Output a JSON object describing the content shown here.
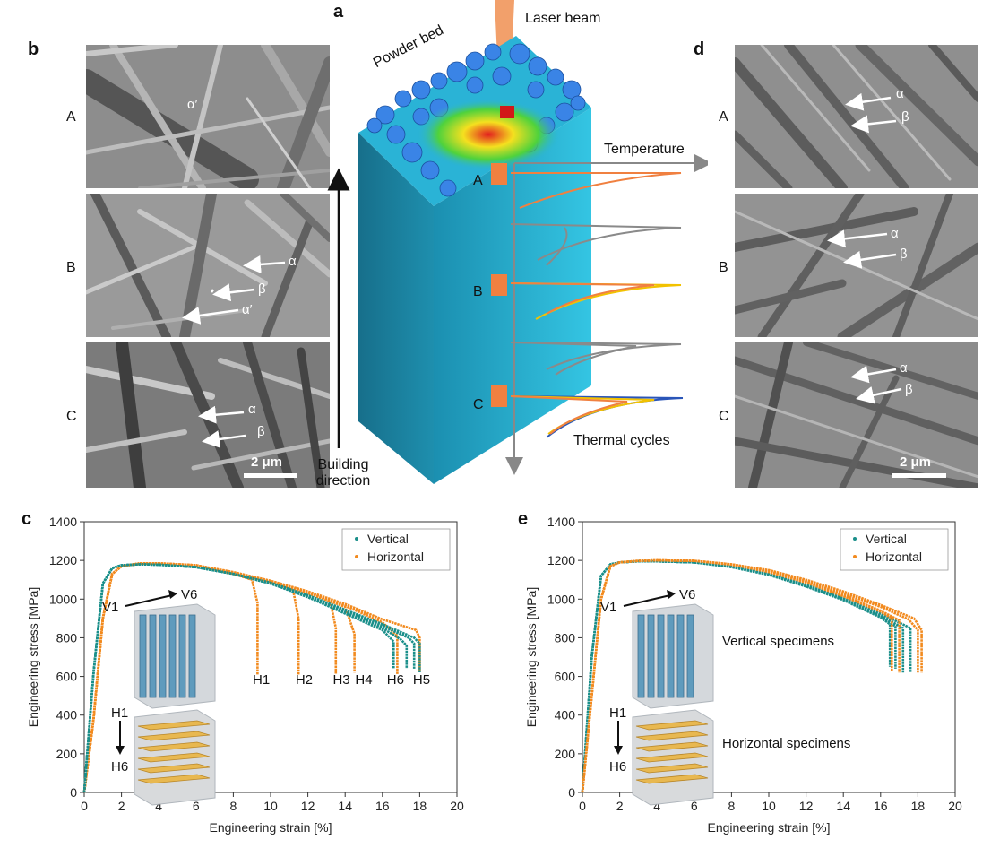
{
  "figure": {
    "panel_a": {
      "letter": "a",
      "laser_beam": "Laser beam",
      "powder_bed": "Powder bed",
      "temperature": "Temperature",
      "thermal_cycles": "Thermal cycles",
      "building_direction_1": "Building",
      "building_direction_2": "direction",
      "points": [
        "A",
        "B",
        "C"
      ]
    },
    "panel_b": {
      "letter": "b",
      "rows": [
        {
          "label": "A",
          "annotations": [
            "α′"
          ]
        },
        {
          "label": "B",
          "annotations": [
            "α",
            "β",
            "α′"
          ]
        },
        {
          "label": "C",
          "annotations": [
            "α",
            "β"
          ]
        }
      ],
      "scale_bar": "2 μm"
    },
    "panel_d": {
      "letter": "d",
      "rows": [
        {
          "label": "A",
          "annotations": [
            "α",
            "β"
          ]
        },
        {
          "label": "B",
          "annotations": [
            "α",
            "β"
          ]
        },
        {
          "label": "C",
          "annotations": [
            "α",
            "β"
          ]
        }
      ],
      "scale_bar": "2 μm"
    },
    "panel_c": {
      "letter": "c",
      "inset_top": {
        "from": "V1",
        "to": "V6"
      },
      "inset_bottom": {
        "from": "H1",
        "to": "H6"
      },
      "fracture_labels": [
        "H1",
        "H2",
        "H3",
        "H4",
        "H6",
        "H5"
      ]
    },
    "panel_e": {
      "letter": "e",
      "inset_top": {
        "from": "V1",
        "to": "V6",
        "caption": "Vertical specimens"
      },
      "inset_bottom": {
        "from": "H1",
        "to": "H6",
        "caption": "Horizontal specimens"
      }
    }
  },
  "colors": {
    "vertical": "#1a8f8a",
    "horizontal": "#f28a1e",
    "gray_cycle": "#8a8a8a",
    "yellow_cycle": "#f2c200",
    "blue_cycle": "#2a55b8",
    "block_front": "#2ab3d6",
    "block_side": "#1c89a8"
  },
  "chart_data": [
    {
      "type": "line",
      "panel": "c",
      "xlabel": "Engineering strain [%]",
      "ylabel": "Engineering stress [MPa]",
      "xlim": [
        0,
        20
      ],
      "ylim": [
        0,
        1400
      ],
      "xticks": [
        0,
        2,
        4,
        6,
        8,
        10,
        12,
        14,
        16,
        18,
        20
      ],
      "yticks": [
        0,
        200,
        400,
        600,
        800,
        1000,
        1200,
        1400
      ],
      "legend": [
        "Vertical",
        "Horizontal"
      ],
      "legend_position": "top-right",
      "series": [
        {
          "name": "Vertical",
          "group": "vertical",
          "x": [
            0,
            0.5,
            1.0,
            1.5,
            2,
            3,
            4,
            6,
            8,
            10,
            12,
            14,
            16,
            17.0,
            17.3,
            17.3
          ],
          "y": [
            0,
            620,
            1080,
            1160,
            1175,
            1180,
            1178,
            1165,
            1130,
            1080,
            1010,
            930,
            850,
            790,
            760,
            640
          ]
        },
        {
          "name": "",
          "group": "vertical",
          "x": [
            0,
            0.5,
            1.0,
            1.5,
            2,
            3,
            4,
            6,
            8,
            10,
            12,
            14,
            16,
            17.4,
            17.7,
            17.7
          ],
          "y": [
            0,
            620,
            1080,
            1160,
            1175,
            1180,
            1178,
            1165,
            1130,
            1080,
            1015,
            940,
            860,
            800,
            770,
            640
          ]
        },
        {
          "name": "",
          "group": "vertical",
          "x": [
            0,
            0.5,
            1.0,
            1.5,
            2,
            3,
            4,
            6,
            8,
            10,
            12,
            14,
            16,
            17.7,
            18.0,
            18.0
          ],
          "y": [
            0,
            620,
            1080,
            1160,
            1175,
            1180,
            1178,
            1165,
            1130,
            1085,
            1020,
            945,
            870,
            800,
            770,
            620
          ]
        },
        {
          "name": "",
          "group": "vertical",
          "x": [
            0,
            0.5,
            1.0,
            1.5,
            2,
            3,
            4,
            6,
            8,
            10,
            12,
            14,
            16,
            16.6,
            16.6
          ],
          "y": [
            0,
            620,
            1080,
            1160,
            1175,
            1180,
            1178,
            1165,
            1130,
            1080,
            1010,
            925,
            840,
            780,
            640
          ]
        },
        {
          "name": "Horizontal",
          "group": "horizontal",
          "x": [
            0,
            0.5,
            1.0,
            1.5,
            2,
            3,
            4,
            6,
            8,
            9.0,
            9.3,
            9.3
          ],
          "y": [
            0,
            380,
            900,
            1130,
            1170,
            1185,
            1185,
            1175,
            1130,
            1100,
            980,
            610
          ]
        },
        {
          "name": "",
          "group": "horizontal",
          "x": [
            0,
            0.5,
            1.0,
            1.5,
            2,
            3,
            4,
            6,
            8,
            10,
            11.2,
            11.5,
            11.5
          ],
          "y": [
            0,
            380,
            900,
            1130,
            1170,
            1185,
            1185,
            1175,
            1135,
            1090,
            1050,
            900,
            610
          ]
        },
        {
          "name": "",
          "group": "horizontal",
          "x": [
            0,
            0.5,
            1.0,
            1.5,
            2,
            3,
            4,
            6,
            8,
            10,
            12,
            13.2,
            13.5,
            13.5
          ],
          "y": [
            0,
            380,
            900,
            1130,
            1170,
            1185,
            1185,
            1175,
            1135,
            1090,
            1030,
            990,
            850,
            610
          ]
        },
        {
          "name": "",
          "group": "horizontal",
          "x": [
            0,
            0.5,
            1.0,
            1.5,
            2,
            3,
            4,
            6,
            8,
            10,
            12,
            14,
            14.5,
            14.5
          ],
          "y": [
            0,
            380,
            900,
            1130,
            1170,
            1185,
            1185,
            1175,
            1135,
            1090,
            1030,
            960,
            820,
            620
          ]
        },
        {
          "name": "",
          "group": "horizontal",
          "x": [
            0,
            0.5,
            1.0,
            1.5,
            2,
            3,
            4,
            6,
            8,
            10,
            12,
            14,
            16,
            16.8,
            16.8
          ],
          "y": [
            0,
            380,
            900,
            1130,
            1170,
            1185,
            1185,
            1175,
            1135,
            1090,
            1035,
            965,
            880,
            810,
            610
          ]
        },
        {
          "name": "",
          "group": "horizontal",
          "x": [
            0,
            0.5,
            1.0,
            1.5,
            2,
            3,
            4,
            6,
            8,
            10,
            12,
            14,
            16,
            17.8,
            18.0,
            18.0
          ],
          "y": [
            0,
            380,
            900,
            1130,
            1170,
            1185,
            1185,
            1175,
            1140,
            1095,
            1040,
            975,
            895,
            840,
            800,
            630
          ]
        }
      ]
    },
    {
      "type": "line",
      "panel": "e",
      "xlabel": "Engineering strain [%]",
      "ylabel": "Engineering stress [MPa]",
      "xlim": [
        0,
        20
      ],
      "ylim": [
        0,
        1400
      ],
      "xticks": [
        0,
        2,
        4,
        6,
        8,
        10,
        12,
        14,
        16,
        18,
        20
      ],
      "yticks": [
        0,
        200,
        400,
        600,
        800,
        1000,
        1200,
        1400
      ],
      "legend": [
        "Vertical",
        "Horizontal"
      ],
      "legend_position": "top-right",
      "series": [
        {
          "name": "Vertical",
          "group": "vertical",
          "x": [
            0,
            0.5,
            1.0,
            1.5,
            2,
            3,
            4,
            6,
            8,
            10,
            12,
            14,
            16,
            16.8,
            16.8
          ],
          "y": [
            0,
            700,
            1120,
            1180,
            1190,
            1195,
            1195,
            1190,
            1170,
            1130,
            1070,
            1000,
            910,
            860,
            640
          ]
        },
        {
          "name": "",
          "group": "vertical",
          "x": [
            0,
            0.5,
            1.0,
            1.5,
            2,
            3,
            4,
            6,
            8,
            10,
            12,
            14,
            16,
            17.2,
            17.2
          ],
          "y": [
            0,
            700,
            1120,
            1180,
            1190,
            1195,
            1195,
            1190,
            1170,
            1130,
            1070,
            1000,
            915,
            850,
            620
          ]
        },
        {
          "name": "",
          "group": "vertical",
          "x": [
            0,
            0.5,
            1.0,
            1.5,
            2,
            3,
            4,
            6,
            8,
            10,
            12,
            14,
            16,
            17.6,
            17.6
          ],
          "y": [
            0,
            700,
            1120,
            1180,
            1190,
            1195,
            1195,
            1190,
            1170,
            1130,
            1075,
            1005,
            925,
            850,
            620
          ]
        },
        {
          "name": "",
          "group": "vertical",
          "x": [
            0,
            0.5,
            1.0,
            1.5,
            2,
            3,
            4,
            6,
            8,
            10,
            12,
            14,
            16,
            16.5,
            16.5
          ],
          "y": [
            0,
            700,
            1120,
            1180,
            1190,
            1195,
            1195,
            1190,
            1165,
            1125,
            1065,
            995,
            905,
            870,
            650
          ]
        },
        {
          "name": "Horizontal",
          "group": "horizontal",
          "x": [
            0,
            0.5,
            1.0,
            1.5,
            2,
            3,
            4,
            6,
            8,
            10,
            12,
            14,
            16,
            17.8,
            18.2,
            18.2
          ],
          "y": [
            0,
            500,
            1000,
            1170,
            1190,
            1198,
            1200,
            1198,
            1180,
            1150,
            1100,
            1040,
            970,
            900,
            840,
            620
          ]
        },
        {
          "name": "",
          "group": "horizontal",
          "x": [
            0,
            0.5,
            1.0,
            1.5,
            2,
            3,
            4,
            6,
            8,
            10,
            12,
            14,
            16,
            17.5,
            18.0,
            18.0
          ],
          "y": [
            0,
            500,
            1000,
            1170,
            1190,
            1198,
            1200,
            1198,
            1180,
            1148,
            1095,
            1030,
            960,
            895,
            840,
            620
          ]
        },
        {
          "name": "",
          "group": "horizontal",
          "x": [
            0,
            0.5,
            1.0,
            1.5,
            2,
            3,
            4,
            6,
            8,
            10,
            12,
            14,
            16,
            17.0,
            17.0
          ],
          "y": [
            0,
            500,
            1000,
            1170,
            1190,
            1198,
            1200,
            1198,
            1180,
            1145,
            1090,
            1020,
            940,
            890,
            620
          ]
        },
        {
          "name": "",
          "group": "horizontal",
          "x": [
            0,
            0.5,
            1.0,
            1.5,
            2,
            3,
            4,
            6,
            8,
            10,
            12,
            14,
            16,
            16.6,
            16.6
          ],
          "y": [
            0,
            500,
            1000,
            1170,
            1190,
            1198,
            1200,
            1198,
            1178,
            1140,
            1085,
            1015,
            935,
            900,
            630
          ]
        }
      ]
    }
  ]
}
